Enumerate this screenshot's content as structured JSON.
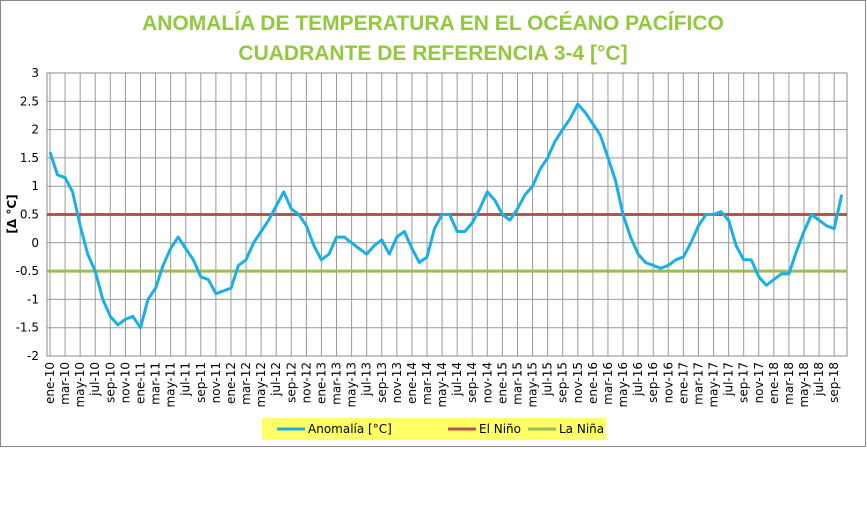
{
  "chart_data": {
    "type": "line",
    "title": [
      "ANOMALÍA DE TEMPERATURA EN EL OCÉANO PACÍFICO",
      "CUADRANTE DE REFERENCIA 3-4 [°C]"
    ],
    "y_label": "[Δ °C]",
    "categories": [
      "ene-10",
      null,
      "mar-10",
      null,
      "may-10",
      null,
      "jul-10",
      null,
      "sep-10",
      null,
      "nov-10",
      null,
      "ene-11",
      null,
      "mar-11",
      null,
      "may-11",
      null,
      "jul-11",
      null,
      "sep-11",
      null,
      "nov-11",
      null,
      "ene-12",
      null,
      "mar-12",
      null,
      "may-12",
      null,
      "jul-12",
      null,
      "sep-12",
      null,
      "nov-12",
      null,
      "ene-13",
      null,
      "mar-13",
      null,
      "may-13",
      null,
      "jul-13",
      null,
      "sep-13",
      null,
      "nov-13",
      null,
      "ene-14",
      null,
      "mar-14",
      null,
      "may-14",
      null,
      "jul-14",
      null,
      "sep-14",
      null,
      "nov-14",
      null,
      "ene-15",
      null,
      "mar-15",
      null,
      "may-15",
      null,
      "jul-15",
      null,
      "sep-15",
      null,
      "nov-15",
      null,
      "ene-16",
      null,
      "mar-16",
      null,
      "may-16",
      null,
      "jul-16",
      null,
      "sep-16",
      null,
      "nov-16",
      null,
      "ene-17",
      null,
      "mar-17",
      null,
      "may-17",
      null,
      "jul-17",
      null,
      "sep-17",
      null,
      "nov-17",
      null,
      "ene-18",
      null,
      "mar-18",
      null,
      "may-18",
      null,
      "jul-18",
      null,
      "sep-18",
      null
    ],
    "series": [
      {
        "name": "Anomalía [°C]",
        "color": "#1aafe6",
        "values": [
          1.6,
          1.2,
          1.15,
          0.9,
          0.3,
          -0.2,
          -0.5,
          -1.0,
          -1.3,
          -1.45,
          -1.35,
          -1.3,
          -1.5,
          -1.0,
          -0.8,
          -0.4,
          -0.1,
          0.1,
          -0.1,
          -0.3,
          -0.6,
          -0.65,
          -0.9,
          -0.85,
          -0.8,
          -0.4,
          -0.3,
          0.0,
          0.2,
          0.4,
          0.65,
          0.9,
          0.6,
          0.5,
          0.3,
          -0.05,
          -0.3,
          -0.2,
          0.1,
          0.1,
          0.0,
          -0.1,
          -0.2,
          -0.05,
          0.05,
          -0.2,
          0.1,
          0.2,
          -0.1,
          -0.35,
          -0.25,
          0.25,
          0.5,
          0.5,
          0.2,
          0.2,
          0.35,
          0.6,
          0.9,
          0.75,
          0.5,
          0.4,
          0.6,
          0.85,
          1.0,
          1.3,
          1.5,
          1.8,
          2.0,
          2.2,
          2.45,
          2.3,
          2.1,
          1.9,
          1.5,
          1.1,
          0.5,
          0.1,
          -0.2,
          -0.35,
          -0.4,
          -0.45,
          -0.4,
          -0.3,
          -0.25,
          0.0,
          0.3,
          0.5,
          0.5,
          0.55,
          0.4,
          -0.05,
          -0.3,
          -0.3,
          -0.6,
          -0.75,
          -0.65,
          -0.55,
          -0.55,
          -0.15,
          0.2,
          0.5,
          0.4,
          0.3,
          0.25,
          0.85
        ]
      }
    ],
    "thresholds": [
      {
        "name": "El Niño",
        "color": "#c0504d",
        "value": 0.5
      },
      {
        "name": "La Niña",
        "color": "#9bbb59",
        "value": -0.5
      }
    ],
    "ylim": [
      -2,
      3
    ],
    "yticks": [
      -2,
      -1.5,
      -1,
      -0.5,
      0,
      0.5,
      1,
      1.5,
      2,
      2.5,
      3
    ],
    "grid": true
  }
}
